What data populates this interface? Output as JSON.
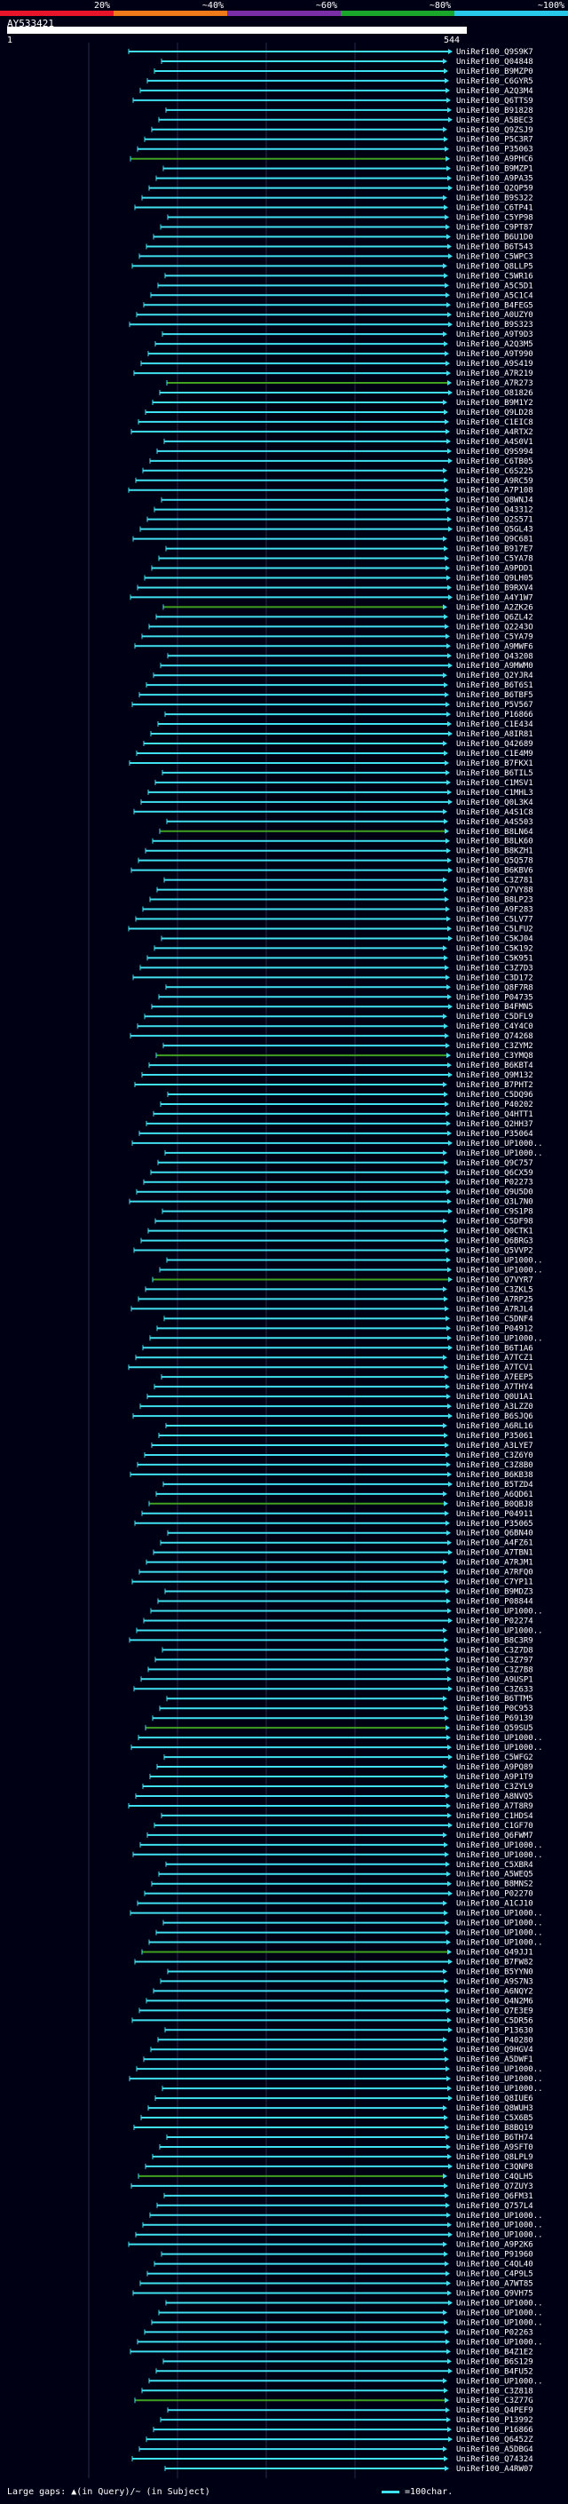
{
  "query": {
    "id": "AY533421",
    "start_label": "1",
    "end_label": "544"
  },
  "scale": {
    "labels": [
      "20%",
      "~40%",
      "~60%",
      "~80%",
      "~100%"
    ],
    "segment_colors": [
      "#e8152a",
      "#f07a1a",
      "#7a2ea8",
      "#1aa62a",
      "#28c8e8"
    ]
  },
  "footer": {
    "left_text": "Large gaps: ▲(in Query)/~ (in Subject)",
    "right_text": "=100char."
  },
  "colors": {
    "hit": "#40e0f0",
    "hit_low": "#40a020",
    "gap": "#ffff00",
    "grid": "#2a2a4a"
  },
  "hits": [
    "UniRef100_Q9S9K7",
    "UniRef100_Q04848",
    "UniRef100_B9MZP0",
    "UniRef100_C6GYR5",
    "UniRef100_A2Q3M4",
    "UniRef100_Q6TTS9",
    "UniRef100_B91828",
    "UniRef100_A5BEC3",
    "UniRef100_Q9ZSJ9",
    "UniRef100_P5C3R7",
    "UniRef100_P35063",
    "UniRef100_A9PHC6",
    "UniRef100_B9MZP1",
    "UniRef100_A9PA35",
    "UniRef100_Q2QP59",
    "UniRef100_B9S322",
    "UniRef100_C6TP41",
    "UniRef100_C5YP98",
    "UniRef100_C9PT87",
    "UniRef100_B6U1D0",
    "UniRef100_B6T543",
    "UniRef100_C5WPC3",
    "UniRef100_Q8LLP5",
    "UniRef100_C5WR16",
    "UniRef100_A5C5D1",
    "UniRef100_A5C1C4",
    "UniRef100_B4FEG5",
    "UniRef100_A0UZY0",
    "UniRef100_B9S323",
    "UniRef100_A9T9D3",
    "UniRef100_A2Q3M5",
    "UniRef100_A9T990",
    "UniRef100_A9S419",
    "UniRef100_A7R219",
    "UniRef100_A7R273",
    "UniRef100_O81826",
    "UniRef100_B9M1Y2",
    "UniRef100_Q9LD28",
    "UniRef100_C1EIC8",
    "UniRef100_A4RTX2",
    "UniRef100_A4S0V1",
    "UniRef100_Q9S994",
    "UniRef100_C6TB05",
    "UniRef100_C6S225",
    "UniRef100_A9RC59",
    "UniRef100_A7P108",
    "UniRef100_Q8WNJ4",
    "UniRef100_Q43312",
    "UniRef100_Q2S571",
    "UniRef100_Q5GL43",
    "UniRef100_Q9C681",
    "UniRef100_B917E7",
    "UniRef100_C5YA78",
    "UniRef100_A9PDD1",
    "UniRef100_Q9LH05",
    "UniRef100_B9RXV4",
    "UniRef100_A4Y1W7",
    "UniRef100_A2ZK26",
    "UniRef100_Q6ZL42",
    "UniRef100_Q2243O",
    "UniRef100_C5YA79",
    "UniRef100_A9MWF6",
    "UniRef100_Q43208",
    "UniRef100_A9MWM0",
    "UniRef100_Q2YJR4",
    "UniRef100_B6T6S1",
    "UniRef100_B6TBF5",
    "UniRef100_P5V567",
    "UniRef100_P16866",
    "UniRef100_C1E434",
    "UniRef100_A8IR81",
    "UniRef100_Q42689",
    "UniRef100_C1E4M9",
    "UniRef100_B7FKX1",
    "UniRef100_B6TIL5",
    "UniRef100_C1MSV1",
    "UniRef100_C1MHL3",
    "UniRef100_Q0L3K4",
    "UniRef100_A4S1C8",
    "UniRef100_A4S503",
    "UniRef100_B8LN64",
    "UniRef100_B8LK60",
    "UniRef100_B8KZH1",
    "UniRef100_Q5Q578",
    "UniRef100_B6KBV6",
    "UniRef100_C3Z781",
    "UniRef100_Q7VY88",
    "UniRef100_B8LP23",
    "UniRef100_A9F283",
    "UniRef100_C5LV77",
    "UniRef100_C5LFU2",
    "UniRef100_C5KJ04",
    "UniRef100_C5K192",
    "UniRef100_C5K951",
    "UniRef100_C3Z7D3",
    "UniRef100_C3D172",
    "UniRef100_Q8F7R8",
    "UniRef100_P04735",
    "UniRef100_B4FMN5",
    "UniRef100_C5DFL9",
    "UniRef100_C4Y4C0",
    "UniRef100_Q74268",
    "UniRef100_C3ZYM2",
    "UniRef100_C3YMQ8",
    "UniRef100_B6KBT4",
    "UniRef100_Q9M132",
    "UniRef100_B7PHT2",
    "UniRef100_C5DQ96",
    "UniRef100_P40202",
    "UniRef100_Q4HTT1",
    "UniRef100_Q2HH37",
    "UniRef100_P35064",
    "UniRef100_UP1000..",
    "UniRef100_UP1000..",
    "UniRef100_Q9C757",
    "UniRef100_Q6CX59",
    "UniRef100_P02273",
    "UniRef100_Q9U5D0",
    "UniRef100_Q3L7N0",
    "UniRef100_C9S1P8",
    "UniRef100_C5DF98",
    "UniRef100_Q0CTK1",
    "UniRef100_Q6BRG3",
    "UniRef100_Q5VVP2",
    "UniRef100_UP1000..",
    "UniRef100_UP1000..",
    "UniRef100_Q7VYR7",
    "UniRef100_C3ZKL5",
    "UniRef100_A7RP25",
    "UniRef100_A7RJL4",
    "UniRef100_C5DNF4",
    "UniRef100_P04912",
    "UniRef100_UP1000..",
    "UniRef100_B6T1A6",
    "UniRef100_A7TCZ1",
    "UniRef100_A7TCV1",
    "UniRef100_A7EEP5",
    "UniRef100_A7THY4",
    "UniRef100_Q0U1A1",
    "UniRef100_A3LZZ0",
    "UniRef100_B6SJQ6",
    "UniRef100_A6RL16",
    "UniRef100_P35061",
    "UniRef100_A3LYE7",
    "UniRef100_C3Z6Y0",
    "UniRef100_C3Z8B0",
    "UniRef100_B6KB38",
    "UniRef100_B5TZD4",
    "UniRef100_A6QD61",
    "UniRef100_B0QBJ8",
    "UniRef100_P04911",
    "UniRef100_P35065",
    "UniRef100_Q6BN40",
    "UniRef100_A4FZ61",
    "UniRef100_A7TBN1",
    "UniRef100_A7RJM1",
    "UniRef100_A7RFQ0",
    "UniRef100_C7YP11",
    "UniRef100_B9MDZ3",
    "UniRef100_P08844",
    "UniRef100_UP1000..",
    "UniRef100_P02274",
    "UniRef100_UP1000..",
    "UniRef100_B8C3R9",
    "UniRef100_C3Z7D8",
    "UniRef100_C3Z797",
    "UniRef100_C3Z7B8",
    "UniRef100_A9USP1",
    "UniRef100_C3Z633",
    "UniRef100_B6TTM5",
    "UniRef100_P0C953",
    "UniRef100_P69139",
    "UniRef100_Q59SU5",
    "UniRef100_UP1000..",
    "UniRef100_UP1000..",
    "UniRef100_C5WFG2",
    "UniRef100_A9PQ89",
    "UniRef100_A9P1T9",
    "UniRef100_C3ZYL9",
    "UniRef100_A8NVQ5",
    "UniRef100_A7T8R9",
    "UniRef100_C1HDS4",
    "UniRef100_C1GF70",
    "UniRef100_Q6FWM7",
    "UniRef100_UP1000..",
    "UniRef100_UP1000..",
    "UniRef100_C5XBR4",
    "UniRef100_A5WEQ5",
    "UniRef100_B8MNS2",
    "UniRef100_P02270",
    "UniRef100_A1CJ10",
    "UniRef100_UP1000..",
    "UniRef100_UP1000..",
    "UniRef100_UP1000..",
    "UniRef100_UP1000..",
    "UniRef100_Q49JJ1",
    "UniRef100_B7FW82",
    "UniRef100_B5YYN0",
    "UniRef100_A9S7N3",
    "UniRef100_A6NQY2",
    "UniRef100_Q4N2M6",
    "UniRef100_Q7E3E9",
    "UniRef100_C5DR56",
    "UniRef100_P13630",
    "UniRef100_P40280",
    "UniRef100_Q9HGV4",
    "UniRef100_A5DWF1",
    "UniRef100_UP1000..",
    "UniRef100_UP1000..",
    "UniRef100_UP1000..",
    "UniRef100_Q8IUE6",
    "UniRef100_Q8WUH3",
    "UniRef100_C5X6B5",
    "UniRef100_B8BQ19",
    "UniRef100_B6TH74",
    "UniRef100_A9SFT0",
    "UniRef100_Q8LPL9",
    "UniRef100_C3QNP8",
    "UniRef100_C4QLH5",
    "UniRef100_Q7ZUY3",
    "UniRef100_Q6FM31",
    "UniRef100_Q757L4",
    "UniRef100_UP1000..",
    "UniRef100_UP1000..",
    "UniRef100_UP1000..",
    "UniRef100_A9P2K6",
    "UniRef100_P91960",
    "UniRef100_C4QL40",
    "UniRef100_C4P9L5",
    "UniRef100_A7WT85",
    "UniRef100_Q9VH75",
    "UniRef100_UP1000..",
    "UniRef100_UP1000..",
    "UniRef100_UP1000..",
    "UniRef100_P02263",
    "UniRef100_UP1000..",
    "UniRef100_B4Z1E2",
    "UniRef100_B6S129",
    "UniRef100_B4FU52",
    "UniRef100_UP1000..",
    "UniRef100_C3Z818",
    "UniRef100_C3Z77G",
    "UniRef100_Q4PEF9",
    "UniRef100_P13992",
    "UniRef100_P16866",
    "UniRef100_Q6452Z",
    "UniRef100_A5DBG4",
    "UniRef100_Q74324",
    "UniRef100_A4RW07"
  ]
}
